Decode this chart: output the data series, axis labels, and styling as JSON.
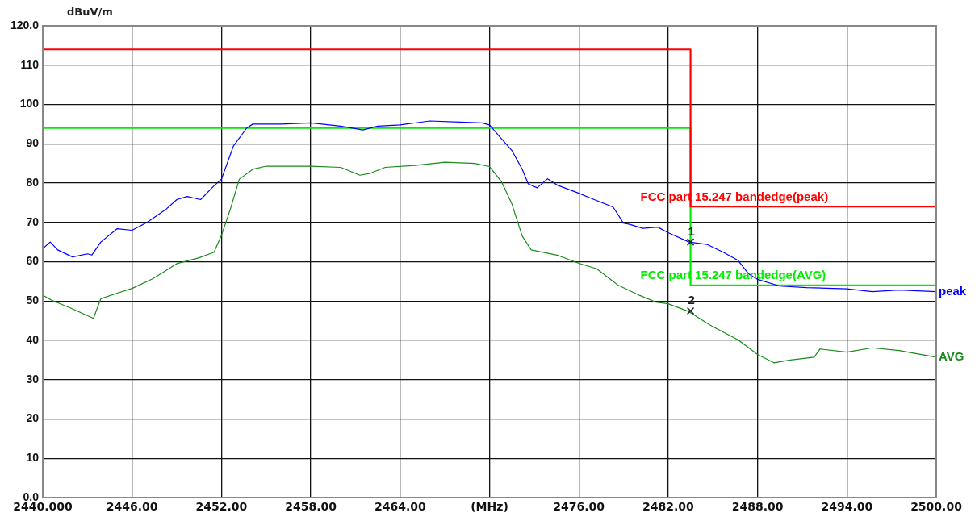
{
  "chart_data": {
    "type": "line",
    "ylabel": "dBuV/m",
    "xlim": [
      2440,
      2500
    ],
    "ylim": [
      0,
      120
    ],
    "xticks": [
      {
        "value": 2440,
        "label": "2440.000"
      },
      {
        "value": 2446,
        "label": "2446.00"
      },
      {
        "value": 2452,
        "label": "2452.00"
      },
      {
        "value": 2458,
        "label": "2458.00"
      },
      {
        "value": 2464,
        "label": "2464.00"
      },
      {
        "value": 2470,
        "label": "(MHz)"
      },
      {
        "value": 2476,
        "label": "2476.00"
      },
      {
        "value": 2482,
        "label": "2482.00"
      },
      {
        "value": 2488,
        "label": "2488.00"
      },
      {
        "value": 2494,
        "label": "2494.00"
      },
      {
        "value": 2500,
        "label": "2500.00"
      }
    ],
    "yticks": [
      {
        "value": 0,
        "label": "0.0"
      },
      10,
      20,
      30,
      40,
      50,
      60,
      70,
      80,
      90,
      100,
      110,
      {
        "value": 120,
        "label": "120.0"
      }
    ],
    "grid": true,
    "legend": false,
    "marker": "none",
    "line_style": "solid",
    "series": [
      {
        "type": "step",
        "name": "FCC part 15.247 bandedge(peak)",
        "color": "#ff0000",
        "x": [
          2440,
          2483.5,
          2500
        ],
        "values": [
          114,
          74,
          74
        ]
      },
      {
        "type": "step",
        "name": "FCC part 15.247 bandedge(AVG)",
        "color": "#00ee00",
        "x": [
          2440,
          2483.5,
          2500
        ],
        "values": [
          94,
          54,
          54
        ]
      },
      {
        "type": "line",
        "name": "peak",
        "color": "#0000ff",
        "x": [
          2440,
          2440.5,
          2441,
          2442,
          2443,
          2443.3,
          2443.9,
          2445,
          2446,
          2447,
          2448.3,
          2449,
          2449.7,
          2450.6,
          2451.5,
          2452,
          2452.8,
          2453.7,
          2454.1,
          2456,
          2458,
          2460,
          2461.5,
          2462.5,
          2464,
          2466,
          2468,
          2469.5,
          2470,
          2470.7,
          2471.5,
          2472.2,
          2472.6,
          2473.2,
          2473.9,
          2474.6,
          2476,
          2476.9,
          2478.3,
          2479,
          2479.4,
          2480.3,
          2481.3,
          2482,
          2483.4,
          2484.6,
          2485.7,
          2486.7,
          2487.4,
          2488,
          2489.5,
          2491.3,
          2494,
          2495.7,
          2497.5,
          2500
        ],
        "values": [
          63.3,
          65,
          63,
          61.2,
          62,
          61.7,
          65,
          68.4,
          68,
          70,
          73.4,
          75.8,
          76.6,
          75.8,
          79.3,
          81,
          89.4,
          94,
          95,
          95,
          95.3,
          94.5,
          93.5,
          94.5,
          94.8,
          95.8,
          95.5,
          95.3,
          94.8,
          91.7,
          88.3,
          83.5,
          79.8,
          78.8,
          81.1,
          79.4,
          77.4,
          76,
          73.9,
          69.8,
          69.5,
          68.5,
          68.8,
          67.4,
          65,
          64.4,
          62.4,
          60.3,
          56.9,
          55.5,
          53.8,
          53.4,
          53.1,
          52.4,
          52.8,
          52.4
        ]
      },
      {
        "type": "line",
        "name": "AVG",
        "color": "#1a8a1a",
        "x": [
          2440,
          2440.6,
          2442,
          2443.4,
          2443.9,
          2445,
          2446,
          2447.4,
          2449,
          2450.5,
          2451.5,
          2452,
          2452.6,
          2453.2,
          2454.1,
          2455,
          2458,
          2460,
          2461.3,
          2462,
          2463,
          2465,
          2467,
          2469,
          2470,
          2470.8,
          2471.5,
          2472.2,
          2472.8,
          2474.6,
          2476,
          2477.2,
          2478.6,
          2480.1,
          2481.2,
          2482,
          2483.4,
          2484.8,
          2486.7,
          2488,
          2489.1,
          2490.2,
          2491.8,
          2492.2,
          2494,
          2495.7,
          2497.5,
          2500
        ],
        "values": [
          51.5,
          50.2,
          48,
          45.6,
          50.6,
          52,
          53.2,
          55.7,
          59.5,
          61,
          62.4,
          66.7,
          73.4,
          81,
          83.5,
          84.3,
          84.3,
          84,
          82,
          82.5,
          84,
          84.5,
          85.3,
          85,
          84.2,
          80.4,
          74.7,
          66.5,
          63,
          61.6,
          59.6,
          58.2,
          54.1,
          51.4,
          49.7,
          49.3,
          47.3,
          43.9,
          40.1,
          36.4,
          34.3,
          35,
          35.7,
          37.8,
          37,
          38.1,
          37.4,
          35.7
        ]
      }
    ],
    "annotations": [
      {
        "text": "1",
        "x": 2483.5,
        "y": 65
      },
      {
        "text": "2",
        "x": 2483.5,
        "y": 47.5
      }
    ]
  }
}
